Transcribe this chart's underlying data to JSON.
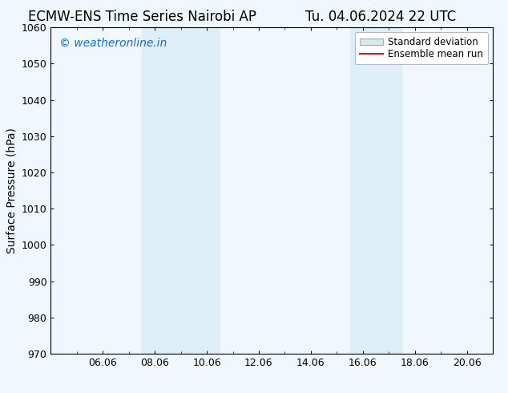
{
  "title_left": "ECMW-ENS Time Series Nairobi AP",
  "title_right": "Tu. 04.06.2024 22 UTC",
  "ylabel": "Surface Pressure (hPa)",
  "ylim": [
    970,
    1060
  ],
  "yticks": [
    970,
    980,
    990,
    1000,
    1010,
    1020,
    1030,
    1040,
    1050,
    1060
  ],
  "x_min": 4.0,
  "x_max": 21.0,
  "xtick_positions": [
    6.0,
    8.0,
    10.0,
    12.0,
    14.0,
    16.0,
    18.0,
    20.0
  ],
  "xtick_labels": [
    "06.06",
    "08.06",
    "10.06",
    "12.06",
    "14.06",
    "16.06",
    "18.06",
    "20.06"
  ],
  "shaded_regions": [
    {
      "x_start": 7.5,
      "x_end": 10.5,
      "color": "#ddeef8"
    },
    {
      "x_start": 15.5,
      "x_end": 17.5,
      "color": "#ddeef8"
    }
  ],
  "watermark_text": "© weatheronline.in",
  "watermark_color": "#1a6bbf",
  "background_color": "#f0f7fe",
  "plot_bg_color": "#f0f7fe",
  "legend_items": [
    {
      "label": "Standard deviation",
      "type": "rect",
      "facecolor": "#d8e8f0",
      "edgecolor": "#aaaaaa"
    },
    {
      "label": "Ensemble mean run",
      "type": "line",
      "color": "#dd0000"
    }
  ],
  "title_fontsize": 12,
  "axis_fontsize": 10,
  "tick_fontsize": 9,
  "watermark_fontsize": 10,
  "legend_fontsize": 8.5
}
